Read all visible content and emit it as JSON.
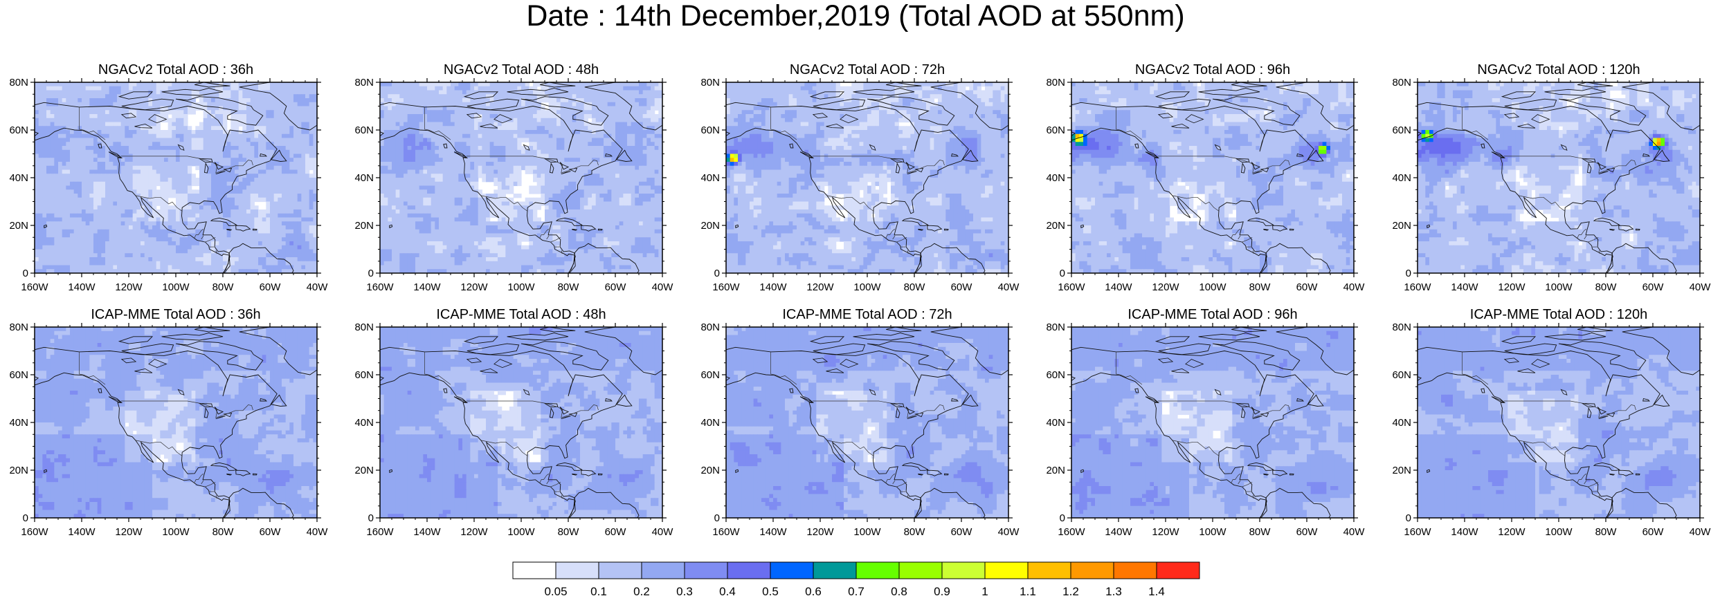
{
  "title": "Date : 14th December,2019 (Total AOD at 550nm)",
  "panels": [
    {
      "title": "NGACv2 Total AOD : 36h",
      "model": "NGACv2",
      "lead": "36h"
    },
    {
      "title": "NGACv2 Total AOD : 48h",
      "model": "NGACv2",
      "lead": "48h"
    },
    {
      "title": "NGACv2 Total AOD : 72h",
      "model": "NGACv2",
      "lead": "72h"
    },
    {
      "title": "NGACv2 Total AOD : 96h",
      "model": "NGACv2",
      "lead": "96h"
    },
    {
      "title": "NGACv2 Total AOD : 120h",
      "model": "NGACv2",
      "lead": "120h"
    },
    {
      "title": "ICAP-MME Total AOD : 36h",
      "model": "ICAP-MME",
      "lead": "36h"
    },
    {
      "title": "ICAP-MME Total AOD : 48h",
      "model": "ICAP-MME",
      "lead": "48h"
    },
    {
      "title": "ICAP-MME Total AOD : 72h",
      "model": "ICAP-MME",
      "lead": "72h"
    },
    {
      "title": "ICAP-MME Total AOD : 96h",
      "model": "ICAP-MME",
      "lead": "96h"
    },
    {
      "title": "ICAP-MME Total AOD : 120h",
      "model": "ICAP-MME",
      "lead": "120h"
    }
  ],
  "axes": {
    "y_ticks": [
      "80N",
      "60N",
      "40N",
      "20N",
      "0"
    ],
    "x_ticks": [
      "160W",
      "140W",
      "120W",
      "100W",
      "80W",
      "60W",
      "40W"
    ],
    "lat_range": [
      0,
      80
    ],
    "lon_range": [
      -160,
      -40
    ]
  },
  "colorbar": {
    "levels": [
      "0.05",
      "0.1",
      "0.2",
      "0.3",
      "0.4",
      "0.5",
      "0.6",
      "0.7",
      "0.8",
      "0.9",
      "1",
      "1.1",
      "1.2",
      "1.3",
      "1.4"
    ],
    "colors": [
      "#ffffff",
      "#d7dffa",
      "#b4c3f5",
      "#93a8f2",
      "#7f8cf2",
      "#6a6ef0",
      "#0066ff",
      "#009999",
      "#66ff00",
      "#99ff00",
      "#ccff33",
      "#ffff00",
      "#ffbf00",
      "#ff9900",
      "#ff7700",
      "#ff2a1a"
    ]
  },
  "features": {
    "hotspots": [
      {
        "panel": 2,
        "lon": -157,
        "lat": 48,
        "aod": 1.0
      },
      {
        "panel": 3,
        "lon": -157,
        "lat": 57,
        "aod": 0.9
      },
      {
        "panel": 3,
        "lon": -53,
        "lat": 52,
        "aod": 0.6
      },
      {
        "panel": 4,
        "lon": -58,
        "lat": 55,
        "aod": 1.0
      },
      {
        "panel": 4,
        "lon": -156,
        "lat": 58,
        "aod": 0.7
      }
    ]
  }
}
